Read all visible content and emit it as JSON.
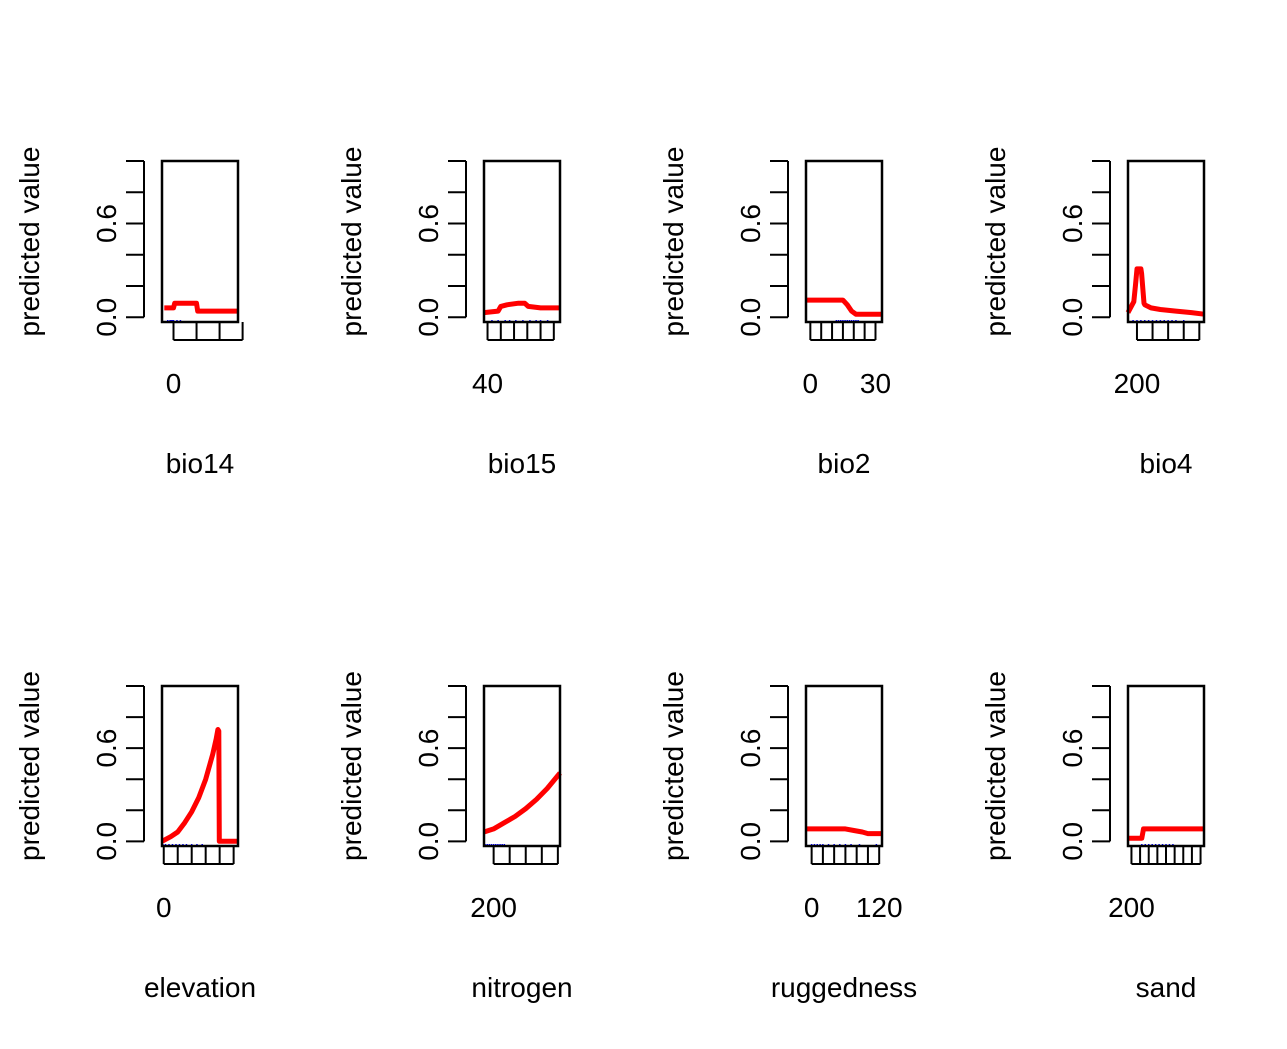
{
  "colors": {
    "curve": "#ff0000",
    "rug": "#0000ff",
    "frame": "#000000"
  },
  "chart_data": [
    {
      "type": "line",
      "xlabel": "bio14",
      "ylabel": "predicted value",
      "xlim": [
        -1,
        5.6
      ],
      "ylim": [
        -0.03,
        1.0
      ],
      "xticks": [
        0,
        2,
        4,
        6
      ],
      "xtick_labels": [
        "0",
        "",
        "",
        ""
      ],
      "yticks": [
        0,
        0.2,
        0.4,
        0.6,
        0.8,
        1.0
      ],
      "ytick_labels": [
        "0.0",
        "",
        "",
        "0.6",
        "",
        ""
      ],
      "grid": false,
      "legend": "none",
      "x": [
        -0.8,
        0,
        0.1,
        2,
        2.1,
        5.6
      ],
      "y": [
        0.06,
        0.06,
        0.09,
        0.09,
        0.04,
        0.04
      ],
      "rug": [
        -0.5,
        -0.3,
        -0.2,
        -0.1,
        0,
        0.3,
        0.6
      ]
    },
    {
      "type": "line",
      "xlabel": "bio15",
      "ylabel": "predicted value",
      "xlim": [
        36,
        122
      ],
      "ylim": [
        -0.03,
        1.0
      ],
      "xticks": [
        40,
        55,
        70,
        85,
        100,
        115
      ],
      "xtick_labels": [
        "40",
        "",
        "",
        "",
        "",
        ""
      ],
      "yticks": [
        0,
        0.2,
        0.4,
        0.6,
        0.8,
        1.0
      ],
      "ytick_labels": [
        "0.0",
        "",
        "",
        "0.6",
        "",
        ""
      ],
      "grid": false,
      "legend": "none",
      "x": [
        36,
        52,
        55,
        62,
        75,
        82,
        86,
        100,
        112,
        122
      ],
      "y": [
        0.03,
        0.04,
        0.07,
        0.08,
        0.09,
        0.09,
        0.07,
        0.06,
        0.06,
        0.06
      ],
      "rug": [
        45,
        52,
        60,
        65,
        72,
        80,
        88,
        95,
        100,
        108
      ]
    },
    {
      "type": "line",
      "xlabel": "bio2",
      "ylabel": "predicted value",
      "xlim": [
        -2,
        33
      ],
      "ylim": [
        -0.03,
        1.0
      ],
      "xticks": [
        0,
        5,
        10,
        15,
        20,
        25,
        30
      ],
      "xtick_labels": [
        "0",
        "",
        "",
        "",
        "",
        "",
        "30"
      ],
      "yticks": [
        0,
        0.2,
        0.4,
        0.6,
        0.8,
        1.0
      ],
      "ytick_labels": [
        "0.0",
        "",
        "",
        "0.6",
        "",
        ""
      ],
      "grid": false,
      "legend": "none",
      "x": [
        -2,
        15,
        17,
        19,
        21,
        33
      ],
      "y": [
        0.11,
        0.11,
        0.08,
        0.04,
        0.02,
        0.02
      ],
      "rug": [
        12,
        13,
        14,
        15,
        16,
        17,
        18,
        19,
        20,
        21,
        22
      ]
    },
    {
      "type": "line",
      "xlabel": "bio4",
      "ylabel": "predicted value",
      "xlim": [
        85,
        1060
      ],
      "ylim": [
        -0.03,
        1.0
      ],
      "xticks": [
        200,
        400,
        600,
        800,
        1000
      ],
      "xtick_labels": [
        "200",
        "",
        "",
        "",
        ""
      ],
      "yticks": [
        0,
        0.2,
        0.4,
        0.6,
        0.8,
        1.0
      ],
      "ytick_labels": [
        "0.0",
        "",
        "",
        "0.6",
        "",
        ""
      ],
      "grid": false,
      "legend": "none",
      "x": [
        85,
        160,
        180,
        200,
        250,
        260,
        290,
        300,
        380,
        500,
        700,
        900,
        1060
      ],
      "y": [
        0.03,
        0.1,
        0.2,
        0.31,
        0.31,
        0.28,
        0.09,
        0.08,
        0.06,
        0.05,
        0.04,
        0.03,
        0.02
      ],
      "rug": [
        150,
        200,
        250,
        300,
        350,
        400,
        450,
        500,
        550,
        600,
        650,
        700,
        800
      ]
    },
    {
      "type": "line",
      "xlabel": "elevation",
      "ylabel": "predicted value",
      "xlim": [
        -100,
        4250
      ],
      "ylim": [
        -0.03,
        1.0
      ],
      "xticks": [
        0,
        800,
        1600,
        2400,
        3200,
        4000
      ],
      "xtick_labels": [
        "0",
        "",
        "",
        "",
        "",
        ""
      ],
      "yticks": [
        0,
        0.2,
        0.4,
        0.6,
        0.8,
        1.0
      ],
      "ytick_labels": [
        "0.0",
        "",
        "",
        "0.6",
        "",
        ""
      ],
      "grid": false,
      "legend": "none",
      "x": [
        -100,
        400,
        800,
        1200,
        1600,
        2000,
        2400,
        2800,
        3000,
        3100,
        3150,
        3180,
        4250
      ],
      "y": [
        0.0,
        0.03,
        0.06,
        0.12,
        0.19,
        0.28,
        0.4,
        0.56,
        0.66,
        0.72,
        0.71,
        0.0,
        0.0
      ],
      "rug": [
        -50,
        100,
        300,
        500,
        700,
        900,
        1100,
        1300,
        1600,
        1900,
        2200
      ]
    },
    {
      "type": "line",
      "xlabel": "nitrogen",
      "ylabel": "predicted value",
      "xlim": [
        110,
        820
      ],
      "ylim": [
        -0.03,
        1.0
      ],
      "xticks": [
        200,
        350,
        500,
        650,
        800
      ],
      "xtick_labels": [
        "200",
        "",
        "",
        "",
        ""
      ],
      "yticks": [
        0,
        0.2,
        0.4,
        0.6,
        0.8,
        1.0
      ],
      "ytick_labels": [
        "0.0",
        "",
        "",
        "0.6",
        "",
        ""
      ],
      "grid": false,
      "legend": "none",
      "x": [
        110,
        200,
        300,
        400,
        500,
        600,
        700,
        820
      ],
      "y": [
        0.06,
        0.08,
        0.12,
        0.16,
        0.21,
        0.27,
        0.34,
        0.44
      ],
      "rug": [
        120,
        140,
        160,
        180,
        200,
        220,
        240,
        260,
        280,
        300
      ]
    },
    {
      "type": "line",
      "xlabel": "ruggedness",
      "ylabel": "predicted value",
      "xlim": [
        -10,
        125
      ],
      "ylim": [
        -0.03,
        1.0
      ],
      "xticks": [
        0,
        20,
        40,
        60,
        80,
        100,
        120
      ],
      "xtick_labels": [
        "0",
        "",
        "",
        "",
        "",
        "",
        "120"
      ],
      "yticks": [
        0,
        0.2,
        0.4,
        0.6,
        0.8,
        1.0
      ],
      "ytick_labels": [
        "0.0",
        "",
        "",
        "0.6",
        "",
        ""
      ],
      "grid": false,
      "legend": "none",
      "x": [
        -10,
        60,
        75,
        90,
        100,
        125
      ],
      "y": [
        0.08,
        0.08,
        0.07,
        0.06,
        0.05,
        0.05
      ],
      "rug": [
        0,
        5,
        10,
        15,
        20,
        30,
        40,
        50,
        60,
        70,
        85,
        115
      ]
    },
    {
      "type": "line",
      "xlabel": "sand",
      "ylabel": "predicted value",
      "xlim": [
        190,
        410
      ],
      "ylim": [
        -0.03,
        1.0
      ],
      "xticks": [
        200,
        225,
        250,
        275,
        300,
        325,
        350,
        375,
        400
      ],
      "xtick_labels": [
        "200",
        "",
        "",
        "",
        "",
        "",
        "",
        "",
        ""
      ],
      "yticks": [
        0,
        0.2,
        0.4,
        0.6,
        0.8,
        1.0
      ],
      "ytick_labels": [
        "0.0",
        "",
        "",
        "0.6",
        "",
        ""
      ],
      "grid": false,
      "legend": "none",
      "x": [
        190,
        230,
        235,
        410
      ],
      "y": [
        0.02,
        0.02,
        0.08,
        0.08
      ],
      "rug": [
        230,
        240,
        250,
        260,
        270,
        280,
        290,
        300,
        310,
        320
      ]
    }
  ]
}
